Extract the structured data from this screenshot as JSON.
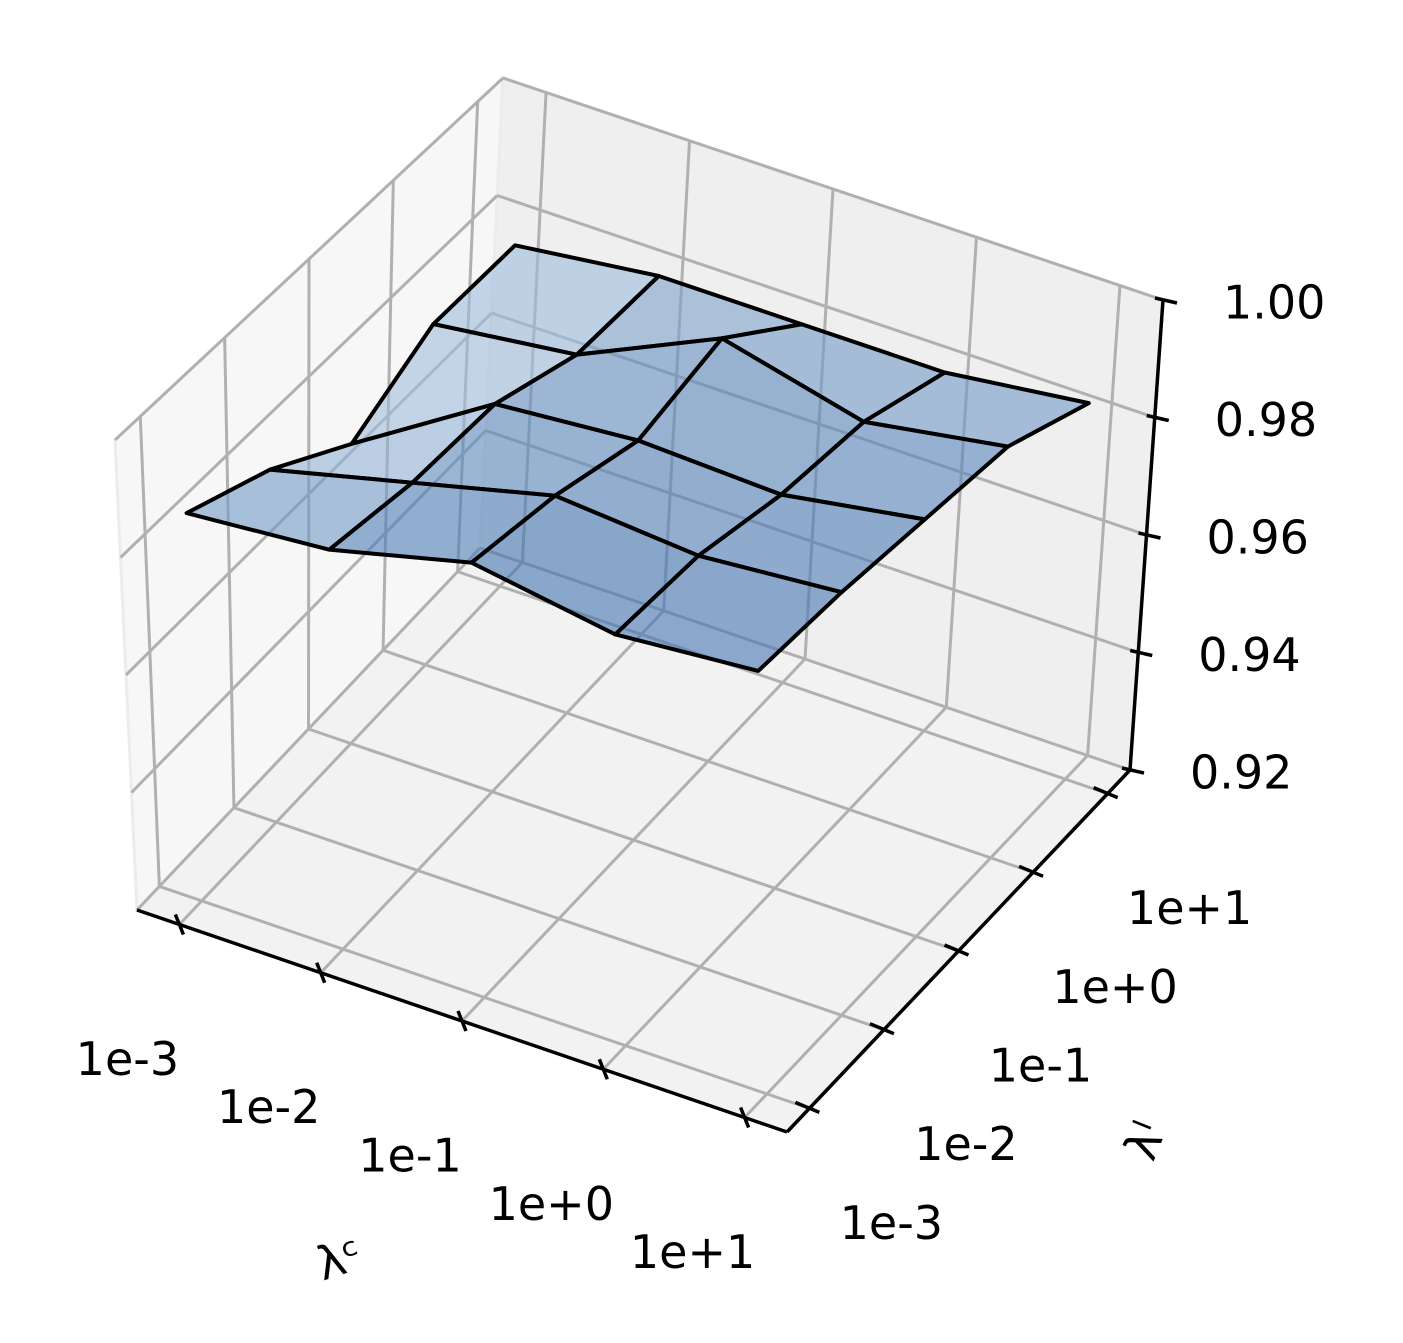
{
  "chart_data": {
    "type": "surface",
    "x_label": "λᶜ",
    "y_label": "λˡ",
    "x_categories": [
      "1e-3",
      "1e-2",
      "1e-1",
      "1e+0",
      "1e+1"
    ],
    "y_categories": [
      "1e-3",
      "1e-2",
      "1e-1",
      "1e+0",
      "1e+1"
    ],
    "z": [
      [
        0.986,
        0.988,
        0.994,
        0.99,
        0.992
      ],
      [
        0.98,
        0.986,
        0.992,
        0.99,
        0.992
      ],
      [
        0.971,
        0.986,
        0.988,
        0.987,
        0.991
      ],
      [
        0.978,
        0.981,
        0.992,
        0.986,
        0.99
      ],
      [
        0.978,
        0.981,
        0.981,
        0.981,
        0.984
      ]
    ],
    "zlim": [
      0.92,
      1.0
    ],
    "zticks": [
      0.92,
      0.94,
      0.96,
      0.98,
      {
        "value": 1.0,
        "label": "1.00"
      }
    ],
    "grid": true,
    "colors": [
      "#deebf7",
      "#2f66a8"
    ],
    "edge_color": "#000000"
  }
}
